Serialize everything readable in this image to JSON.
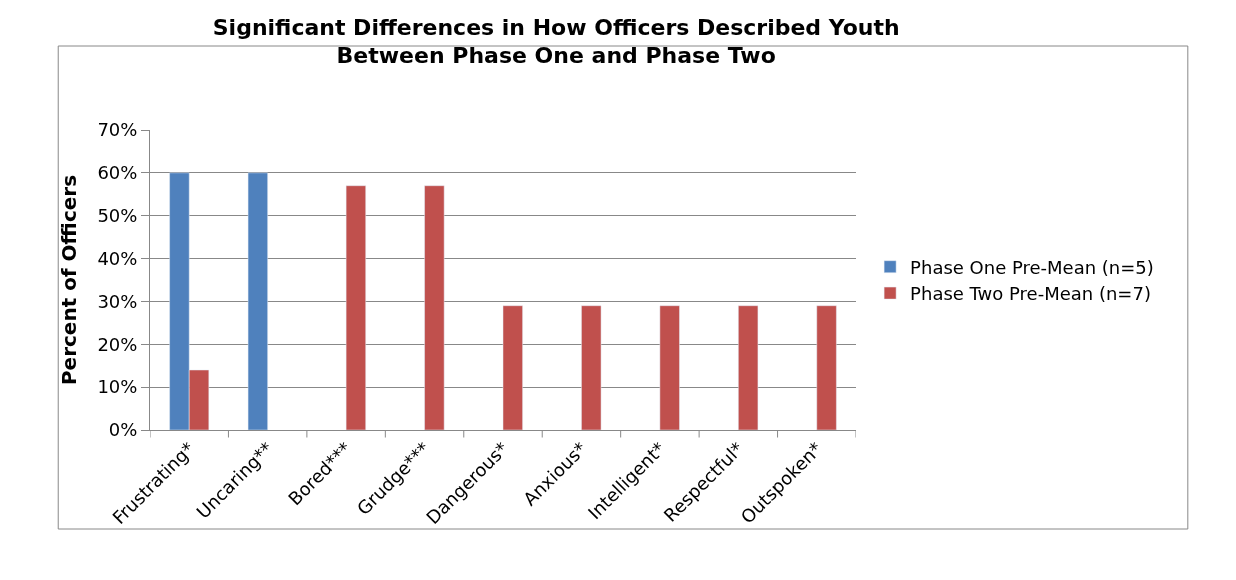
{
  "chart_data": {
    "type": "bar",
    "title": "Significant Differences in How Officers Described Youth Between Phase One and Phase Two",
    "ylabel": "Percent of Officers",
    "categories": [
      "Frustrating*",
      "Uncaring**",
      "Bored***",
      "Grudge***",
      "Dangerous*",
      "Anxious*",
      "Intelligent*",
      "Respectful*",
      "Outspoken*"
    ],
    "series": [
      {
        "name": "Phase One Pre-Mean (n=5)",
        "color": "#4f81bd",
        "values": [
          60,
          60,
          null,
          null,
          null,
          null,
          null,
          null,
          null
        ]
      },
      {
        "name": "Phase Two Pre-Mean (n=7)",
        "color": "#c0504d",
        "values": [
          14,
          null,
          57,
          57,
          29,
          29,
          29,
          29,
          29
        ]
      }
    ],
    "ylim": [
      0,
      70
    ],
    "yticks": [
      {
        "value": 0,
        "label": "0%"
      },
      {
        "value": 10,
        "label": "10%"
      },
      {
        "value": 20,
        "label": "20%"
      },
      {
        "value": 30,
        "label": "30%"
      },
      {
        "value": 40,
        "label": "40%"
      },
      {
        "value": 50,
        "label": "50%"
      },
      {
        "value": 60,
        "label": "60%"
      },
      {
        "value": 70,
        "label": "70%"
      }
    ],
    "grid": "y",
    "legend": "right"
  }
}
